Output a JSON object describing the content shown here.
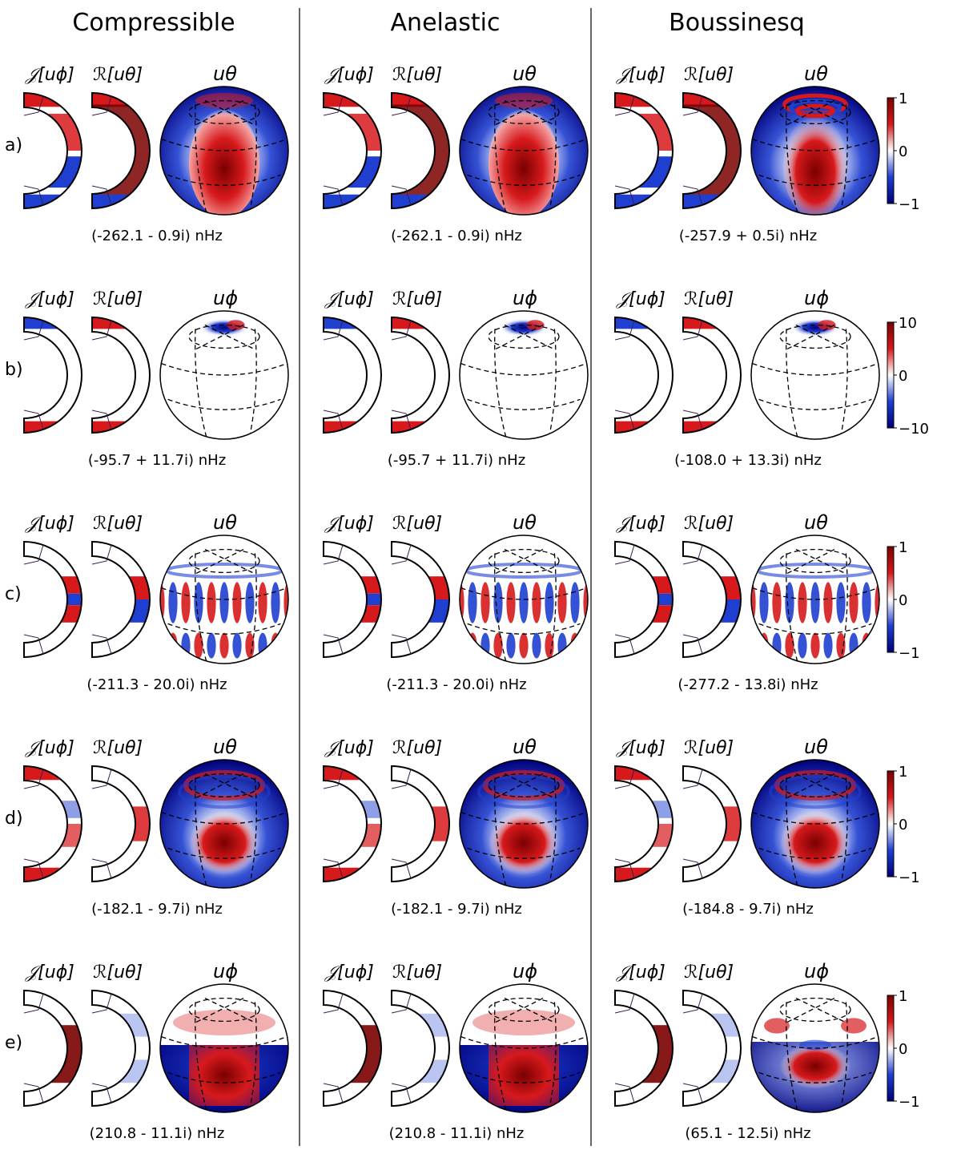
{
  "columns": [
    {
      "title": "Compressible"
    },
    {
      "title": "Anelastic"
    },
    {
      "title": "Boussinesq"
    }
  ],
  "panel_labels": {
    "imag": "𝒥[u",
    "real": "ℛ[u"
  },
  "rows": [
    {
      "label": "a)",
      "sphere_var": "θ",
      "freqs": [
        "(-262.1 - 0.9i) nHz",
        "(-262.1 - 0.9i) nHz",
        "(-257.9 + 0.5i) nHz"
      ],
      "colorbar": {
        "max": "1",
        "mid": "0",
        "min": "−1"
      }
    },
    {
      "label": "b)",
      "sphere_var": "ϕ",
      "freqs": [
        "(-95.7 + 11.7i) nHz",
        "(-95.7 + 11.7i) nHz",
        "(-108.0 + 13.3i) nHz"
      ],
      "colorbar": {
        "max": "10",
        "mid": "0",
        "min": "−10"
      }
    },
    {
      "label": "c)",
      "sphere_var": "θ",
      "freqs": [
        "(-211.3 - 20.0i) nHz",
        "(-211.3 - 20.0i) nHz",
        "(-277.2 - 13.8i) nHz"
      ],
      "colorbar": {
        "max": "1",
        "mid": "0",
        "min": "−1"
      }
    },
    {
      "label": "d)",
      "sphere_var": "θ",
      "freqs": [
        "(-182.1 - 9.7i) nHz",
        "(-182.1 - 9.7i) nHz",
        "(-184.8 - 9.7i) nHz"
      ],
      "colorbar": {
        "max": "1",
        "mid": "0",
        "min": "−1"
      }
    },
    {
      "label": "e)",
      "sphere_var": "ϕ",
      "freqs": [
        "(210.8 - 11.1i) nHz",
        "(210.8 - 11.1i) nHz",
        "(65.1 - 12.5i) nHz"
      ],
      "colorbar": {
        "max": "1",
        "mid": "0",
        "min": "−1"
      }
    }
  ],
  "colors": {
    "red": "#d7191c",
    "dark_red": "#7a0000",
    "blue": "#1f3fd0",
    "dark_blue": "#00007a",
    "white": "#ffffff"
  }
}
